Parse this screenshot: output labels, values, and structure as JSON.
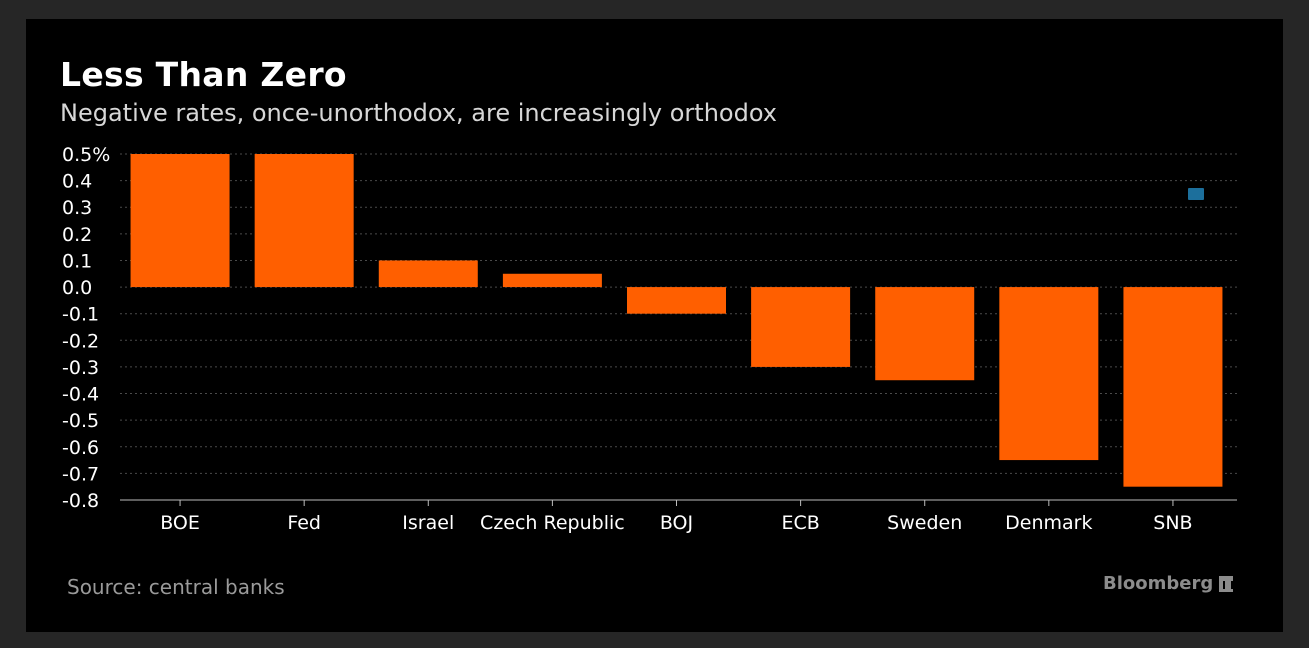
{
  "header": {
    "title": "Less Than Zero",
    "subtitle": "Negative rates, once-unorthodox, are increasingly orthodox"
  },
  "footer": {
    "source": "Source: central banks",
    "brand": "Bloomberg"
  },
  "colors": {
    "background": "#000000",
    "outer_background": "#262626",
    "bar": "#ff5f00",
    "gridline": "#4a4a4a",
    "text": "#ffffff"
  },
  "chart_data": {
    "type": "bar",
    "categories": [
      "BOE",
      "Fed",
      "Israel",
      "Czech Republic",
      "BOJ",
      "ECB",
      "Sweden",
      "Denmark",
      "SNB"
    ],
    "values": [
      0.5,
      0.5,
      0.1,
      0.05,
      -0.1,
      -0.3,
      -0.35,
      -0.65,
      -0.75
    ],
    "ylim": [
      -0.8,
      0.5
    ],
    "yticks": [
      0.5,
      0.4,
      0.3,
      0.2,
      0.1,
      0.0,
      -0.1,
      -0.2,
      -0.3,
      -0.4,
      -0.5,
      -0.6,
      -0.7,
      -0.8
    ],
    "ytick_labels": [
      "0.5%",
      "0.4",
      "0.3",
      "0.2",
      "0.1",
      "0.0",
      "-0.1",
      "-0.2",
      "-0.3",
      "-0.4",
      "-0.5",
      "-0.6",
      "-0.7",
      "-0.8"
    ],
    "grid": true,
    "legend": "none"
  }
}
